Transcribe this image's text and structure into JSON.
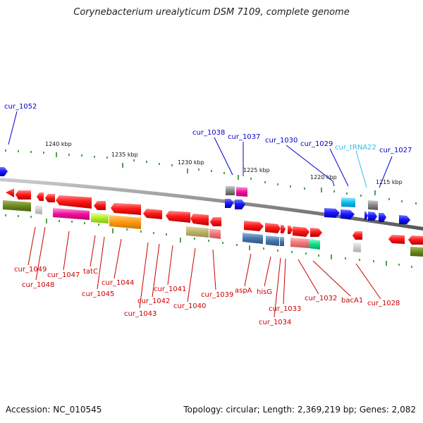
{
  "title": "Corynebacterium urealyticum DSM 7109, complete genome",
  "footer": {
    "accession": "Accession: NC_010545",
    "summary": "Topology: circular; Length: 2,369,219 bp; Genes: 2,082"
  },
  "colors": {
    "forward": "#ee1111",
    "reverse": "#1111ee",
    "label_red": "#cc0000",
    "label_blue": "#0000cc",
    "label_cyan": "#33bbee",
    "backbone": "#888888",
    "tick": "#228822"
  },
  "scale_labels": [
    "1240 kbp",
    "1235 kbp",
    "1230 kbp",
    "1225 kbp",
    "1220 kbp",
    "1215 kbp"
  ],
  "top_labels": [
    "cur_1052",
    "cur_1038",
    "cur_1037",
    "cur_1030",
    "cur_1029",
    "cur_tRNA22",
    "cur_1027"
  ],
  "bottom_labels": [
    "cur_1049",
    "cur_1048",
    "cur_1047",
    "tatC",
    "cur_1045",
    "cur_1044",
    "cur_1043",
    "cur_1042",
    "cur_1041",
    "cur_1040",
    "cur_1039",
    "aspA",
    "hisG",
    "cur_1034",
    "cur_1033",
    "cur_1032",
    "bacA1",
    "cur_1028"
  ]
}
